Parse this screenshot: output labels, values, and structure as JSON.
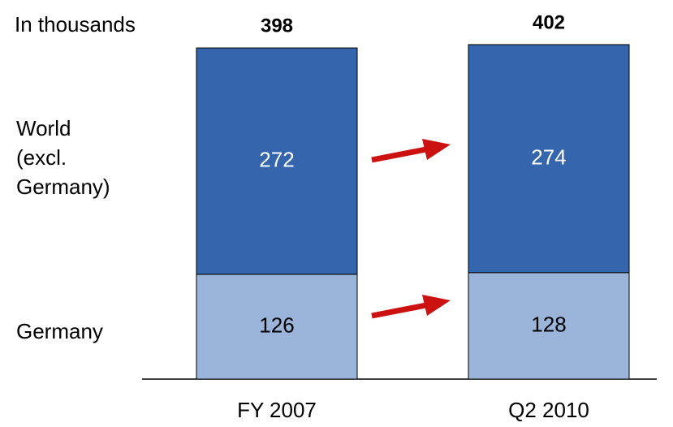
{
  "chart_data": {
    "type": "stacked_bar",
    "subtitle": "In thousands",
    "categories": [
      "FY 2007",
      "Q2 2010"
    ],
    "series": [
      {
        "name": "Germany",
        "color": "#9ab5d9",
        "values": [
          126,
          128
        ]
      },
      {
        "name": "World (excl. Germany)",
        "color": "#3566ad",
        "values": [
          272,
          274
        ]
      }
    ],
    "totals": [
      398,
      402
    ]
  }
}
